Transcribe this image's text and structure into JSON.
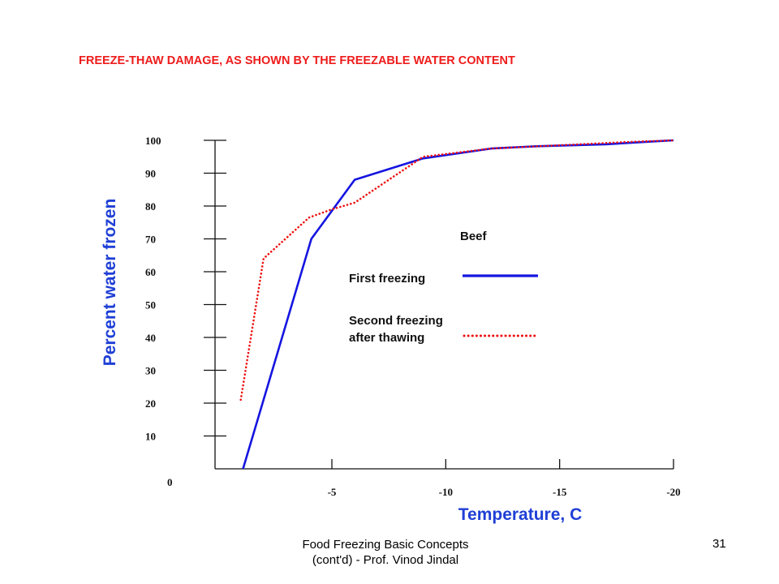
{
  "chart_data": {
    "type": "line",
    "title": "FREEZE-THAW DAMAGE, AS SHOWN BY THE FREEZABLE WATER CONTENT",
    "xlabel": "Temperature, C",
    "ylabel": "Percent water frozen",
    "xlim": [
      1,
      -20
    ],
    "ylim": [
      0,
      100
    ],
    "x_ticks": [
      -5,
      -10,
      -15,
      -20
    ],
    "x_tick_labels": [
      "-5",
      "-10",
      "-15",
      "-20"
    ],
    "y_ticks": [
      0,
      10,
      20,
      30,
      40,
      50,
      60,
      70,
      80,
      90,
      100
    ],
    "y_tick_labels": [
      "0",
      "10",
      "20",
      "30",
      "40",
      "50",
      "60",
      "70",
      "80",
      "90",
      "100"
    ],
    "grid": false,
    "legend_title": "Beef",
    "legend_position": "center-right",
    "series": [
      {
        "name": "First freezing",
        "style": "solid",
        "color": "#1515e0",
        "x": [
          -1.1,
          -2.0,
          -4.1,
          -6.0,
          -9.0,
          -12.0,
          -14.0,
          -17.0,
          -19.0,
          -20.0
        ],
        "y": [
          0,
          21,
          70,
          88,
          94.5,
          97.5,
          98.2,
          98.8,
          99.6,
          100
        ]
      },
      {
        "name": "Second freezing\nafter thawing",
        "style": "dotted",
        "color": "#ee1111",
        "x": [
          -1.0,
          -2.0,
          -4.0,
          -5.0,
          -6.0,
          -9.0,
          -12.0,
          -15.0,
          -18.0,
          -20.0
        ],
        "y": [
          21,
          64,
          76.5,
          79,
          81,
          95,
          97.5,
          98.5,
          99.5,
          100
        ]
      }
    ]
  },
  "footer": {
    "text_line1": "Food Freezing Basic Concepts",
    "text_line2": "(cont'd) - Prof. Vinod Jindal",
    "slide_number": "31"
  },
  "colors": {
    "title": "#ee1c1c",
    "axis_title": "#1f3fd6",
    "first_series": "#1515e0",
    "second_series": "#ee1111"
  }
}
